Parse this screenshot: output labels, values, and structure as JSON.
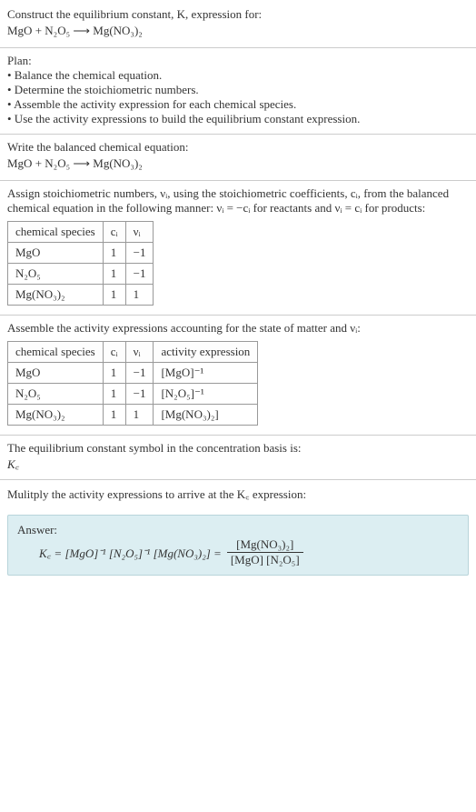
{
  "header": {
    "line1": "Construct the equilibrium constant, K, expression for:",
    "equation_lhs": "MgO + N₂O₅",
    "arrow": "⟶",
    "equation_rhs": "Mg(NO₃)₂"
  },
  "plan": {
    "title": "Plan:",
    "items": [
      "• Balance the chemical equation.",
      "• Determine the stoichiometric numbers.",
      "• Assemble the activity expression for each chemical species.",
      "• Use the activity expressions to build the equilibrium constant expression."
    ]
  },
  "balanced": {
    "intro": "Write the balanced chemical equation:",
    "equation_lhs": "MgO + N₂O₅",
    "arrow": "⟶",
    "equation_rhs": "Mg(NO₃)₂"
  },
  "stoich": {
    "intro": "Assign stoichiometric numbers, νᵢ, using the stoichiometric coefficients, cᵢ, from the balanced chemical equation in the following manner: νᵢ = −cᵢ for reactants and νᵢ = cᵢ for products:",
    "headers": [
      "chemical species",
      "cᵢ",
      "νᵢ"
    ],
    "rows": [
      [
        "MgO",
        "1",
        "−1"
      ],
      [
        "N₂O₅",
        "1",
        "−1"
      ],
      [
        "Mg(NO₃)₂",
        "1",
        "1"
      ]
    ]
  },
  "activity": {
    "intro": "Assemble the activity expressions accounting for the state of matter and νᵢ:",
    "headers": [
      "chemical species",
      "cᵢ",
      "νᵢ",
      "activity expression"
    ],
    "rows": [
      [
        "MgO",
        "1",
        "−1",
        "[MgO]⁻¹"
      ],
      [
        "N₂O₅",
        "1",
        "−1",
        "[N₂O₅]⁻¹"
      ],
      [
        "Mg(NO₃)₂",
        "1",
        "1",
        "[Mg(NO₃)₂]"
      ]
    ]
  },
  "symbol": {
    "intro": "The equilibrium constant symbol in the concentration basis is:",
    "sym": "K꜀"
  },
  "multiply": {
    "intro": "Mulitply the activity expressions to arrive at the K꜀ expression:"
  },
  "answer": {
    "label": "Answer:",
    "lhs": "K꜀ = [MgO]⁻¹ [N₂O₅]⁻¹ [Mg(NO₃)₂] =",
    "frac_num": "[Mg(NO₃)₂]",
    "frac_den": "[MgO] [N₂O₅]"
  }
}
